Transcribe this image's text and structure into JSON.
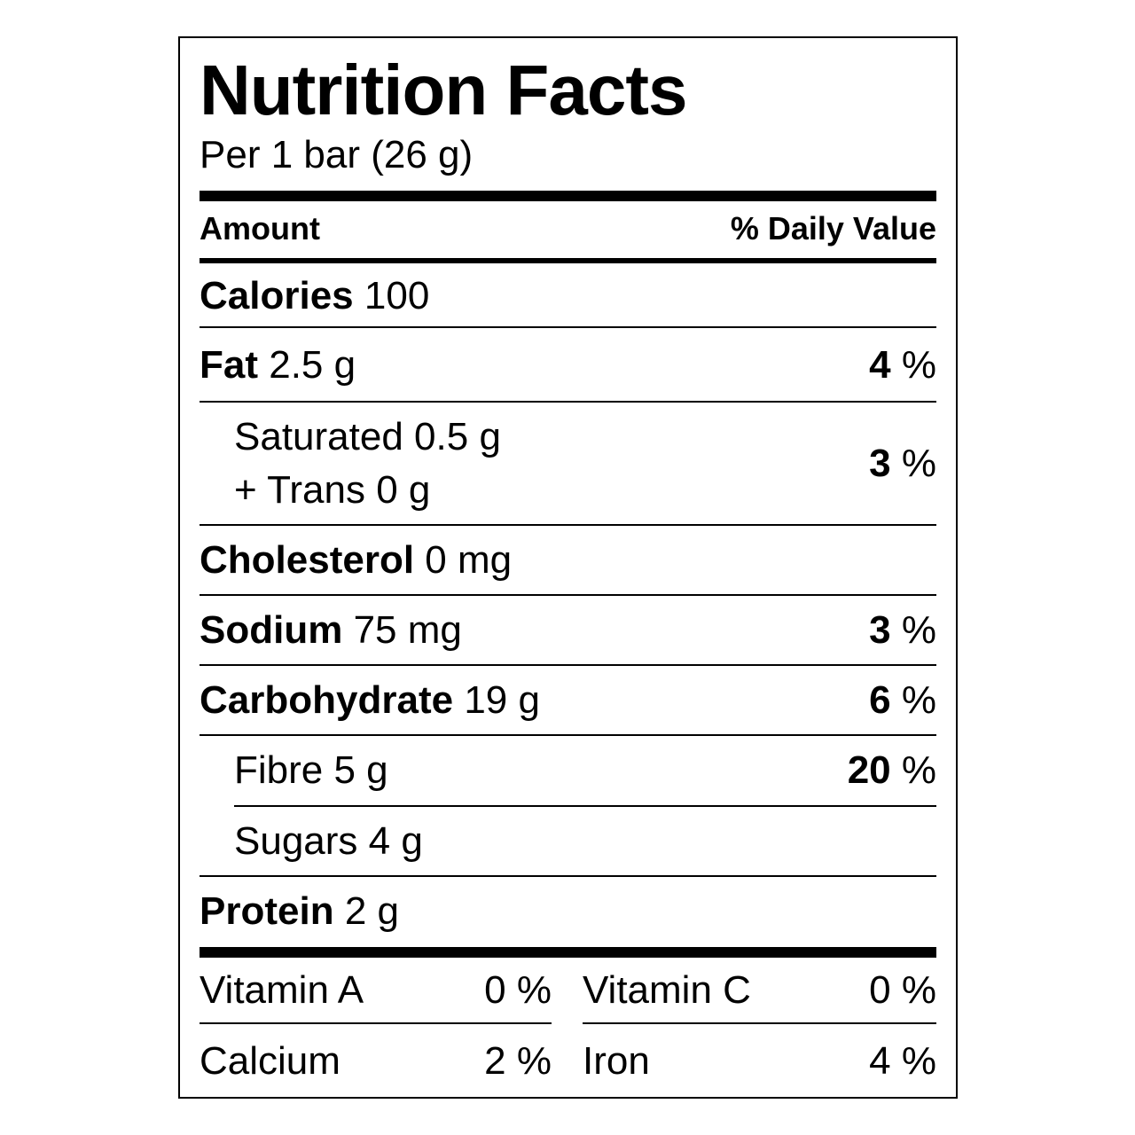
{
  "title": "Nutrition Facts",
  "serving": "Per 1 bar (26 g)",
  "header": {
    "amount": "Amount",
    "daily_value": "% Daily Value"
  },
  "rows": [
    {
      "name": "Calories",
      "amount": "100",
      "dv": "",
      "unit": ""
    },
    {
      "name": "Fat",
      "amount": "2.5 g",
      "dv": "4",
      "unit": "%"
    },
    {
      "name": "Saturated",
      "amount": "0.5 g",
      "line2": "+ Trans 0 g",
      "dv": "3",
      "unit": "%"
    },
    {
      "name": "Cholesterol",
      "amount": "0 mg",
      "dv": "",
      "unit": ""
    },
    {
      "name": "Sodium",
      "amount": "75 mg",
      "dv": "3",
      "unit": "%"
    },
    {
      "name": "Carbohydrate",
      "amount": "19 g",
      "dv": "6",
      "unit": "%"
    },
    {
      "name": "Fibre",
      "amount": "5 g",
      "dv": "20",
      "unit": "%"
    },
    {
      "name": "Sugars",
      "amount": "4 g",
      "dv": "",
      "unit": ""
    },
    {
      "name": "Protein",
      "amount": "2 g",
      "dv": "",
      "unit": ""
    }
  ],
  "vitamins": [
    {
      "name": "Vitamin A",
      "value": "0 %"
    },
    {
      "name": "Vitamin C",
      "value": "0 %"
    },
    {
      "name": "Calcium",
      "value": "2 %"
    },
    {
      "name": "Iron",
      "value": "4 %"
    }
  ]
}
